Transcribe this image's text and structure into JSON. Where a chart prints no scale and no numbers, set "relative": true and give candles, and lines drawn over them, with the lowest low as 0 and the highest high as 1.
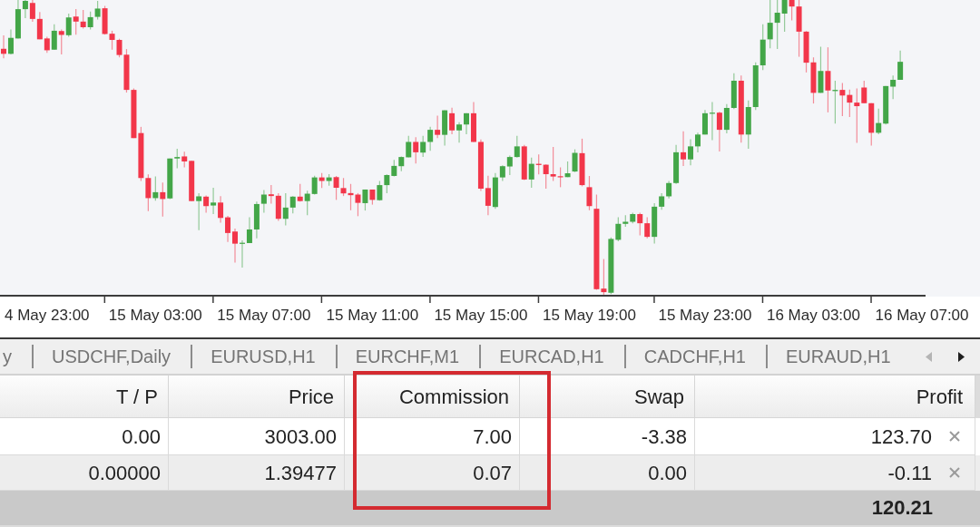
{
  "chart_data": [
    {
      "type": "candlestick",
      "relative": true,
      "categories": [
        null,
        null,
        null,
        null,
        null,
        null,
        "4 May 23:00",
        null,
        null,
        null,
        null,
        null,
        null,
        null,
        null,
        null,
        null,
        null,
        null,
        null,
        null,
        "15 May 03:00",
        null,
        null,
        null,
        null,
        null,
        null,
        null,
        null,
        null,
        null,
        null,
        null,
        null,
        null,
        "15 May 07:00",
        null,
        null,
        null,
        null,
        null,
        null,
        null,
        null,
        null,
        null,
        null,
        null,
        null,
        null,
        "15 May 11:00",
        null,
        null,
        null,
        null,
        null,
        null,
        null,
        null,
        null,
        null,
        null,
        null,
        null,
        null,
        "15 May 15:00",
        null,
        null,
        null,
        null,
        null,
        null,
        null,
        null,
        null,
        null,
        null,
        null,
        null,
        null,
        "15 May 19:00",
        null,
        null,
        null,
        null,
        null,
        null,
        null,
        null,
        null,
        null,
        null,
        null,
        null,
        null,
        null,
        "15 May 23:00",
        null,
        null,
        null,
        null,
        null,
        null,
        null,
        null,
        null,
        null,
        null,
        null,
        null,
        null,
        "16 May 03:00",
        null,
        null,
        null,
        null,
        null,
        null,
        null,
        null,
        null,
        null,
        null,
        null,
        null,
        null,
        "16 May 07:00"
      ],
      "ohlc": [
        [
          0.835,
          0.88,
          0.803,
          0.818
        ],
        [
          0.818,
          0.9,
          0.816,
          0.872
        ],
        [
          0.87,
          1,
          0.87,
          0.969
        ],
        [
          0.969,
          1,
          0.939,
          0.997
        ],
        [
          0.99,
          1,
          0.926,
          0.936
        ],
        [
          0.936,
          0.959,
          0.867,
          0.867
        ],
        [
          0.87,
          0.876,
          0.821,
          0.83
        ],
        [
          0.832,
          0.918,
          0.832,
          0.896
        ],
        [
          0.895,
          0.9,
          0.816,
          0.882
        ],
        [
          0.881,
          0.954,
          0.876,
          0.941
        ],
        [
          0.944,
          0.969,
          0.883,
          0.927
        ],
        [
          0.927,
          0.966,
          0.903,
          0.908
        ],
        [
          0.908,
          0.961,
          0.9,
          0.942
        ],
        [
          0.943,
          0.997,
          0.934,
          0.971
        ],
        [
          0.972,
          0.98,
          0.883,
          0.885
        ],
        [
          0.886,
          0.896,
          0.832,
          0.865
        ],
        [
          0.865,
          0.869,
          0.806,
          0.814
        ],
        [
          0.815,
          0.834,
          0.687,
          0.696
        ],
        [
          0.696,
          0.701,
          0.533,
          0.533
        ],
        [
          0.55,
          0.571,
          0.388,
          0.398
        ],
        [
          0.398,
          0.41,
          0.286,
          0.33
        ],
        [
          0.33,
          0.403,
          0.321,
          0.35
        ],
        [
          0.35,
          0.383,
          0.268,
          0.327
        ],
        [
          0.329,
          0.464,
          0.327,
          0.464
        ],
        [
          0.464,
          0.497,
          0.431,
          0.469
        ],
        [
          0.471,
          0.487,
          0.434,
          0.454
        ],
        [
          0.456,
          0.456,
          0.32,
          0.32
        ],
        [
          0.32,
          0.347,
          0.222,
          0.336
        ],
        [
          0.335,
          0.339,
          0.281,
          0.303
        ],
        [
          0.305,
          0.365,
          0.276,
          0.315
        ],
        [
          0.315,
          0.337,
          0.247,
          0.263
        ],
        [
          0.265,
          0.27,
          0.182,
          0.212
        ],
        [
          0.217,
          0.227,
          0.112,
          0.176
        ],
        [
          0.176,
          0.187,
          0.095,
          0.179
        ],
        [
          0.178,
          0.265,
          0.178,
          0.224
        ],
        [
          0.224,
          0.318,
          0.194,
          0.31
        ],
        [
          0.311,
          0.357,
          0.281,
          0.342
        ],
        [
          0.343,
          0.374,
          0.311,
          0.337
        ],
        [
          0.338,
          0.347,
          0.253,
          0.26
        ],
        [
          0.26,
          0.347,
          0.238,
          0.298
        ],
        [
          0.298,
          0.337,
          0.278,
          0.335
        ],
        [
          0.335,
          0.378,
          0.318,
          0.32
        ],
        [
          0.32,
          0.355,
          0.272,
          0.345
        ],
        [
          0.344,
          0.406,
          0.342,
          0.4
        ],
        [
          0.4,
          0.415,
          0.364,
          0.388
        ],
        [
          0.388,
          0.411,
          0.372,
          0.4
        ],
        [
          0.401,
          0.405,
          0.324,
          0.365
        ],
        [
          0.364,
          0.398,
          0.337,
          0.346
        ],
        [
          0.347,
          0.378,
          0.289,
          0.34
        ],
        [
          0.342,
          0.347,
          0.269,
          0.314
        ],
        [
          0.313,
          0.359,
          0.288,
          0.359
        ],
        [
          0.359,
          0.359,
          0.308,
          0.324
        ],
        [
          0.323,
          0.388,
          0.321,
          0.374
        ],
        [
          0.374,
          0.41,
          0.347,
          0.408
        ],
        [
          0.405,
          0.459,
          0.403,
          0.439
        ],
        [
          0.438,
          0.471,
          0.421,
          0.469
        ],
        [
          0.468,
          0.541,
          0.468,
          0.52
        ],
        [
          0.52,
          0.536,
          0.447,
          0.485
        ],
        [
          0.484,
          0.541,
          0.469,
          0.52
        ],
        [
          0.52,
          0.571,
          0.49,
          0.561
        ],
        [
          0.561,
          0.609,
          0.533,
          0.544
        ],
        [
          0.544,
          0.627,
          0.508,
          0.627
        ],
        [
          0.617,
          0.636,
          0.546,
          0.559
        ],
        [
          0.559,
          0.587,
          0.518,
          0.579
        ],
        [
          0.579,
          0.617,
          0.546,
          0.617
        ],
        [
          0.617,
          0.655,
          0.52,
          0.52
        ],
        [
          0.52,
          0.528,
          0.354,
          0.362
        ],
        [
          0.364,
          0.406,
          0.272,
          0.304
        ],
        [
          0.3,
          0.415,
          0.294,
          0.4
        ],
        [
          0.4,
          0.441,
          0.388,
          0.438
        ],
        [
          0.437,
          0.474,
          0.408,
          0.469
        ],
        [
          0.469,
          0.541,
          0.467,
          0.505
        ],
        [
          0.505,
          0.51,
          0.391,
          0.393
        ],
        [
          0.393,
          0.467,
          0.365,
          0.446
        ],
        [
          0.446,
          0.478,
          0.41,
          0.442
        ],
        [
          0.443,
          0.444,
          0.362,
          0.411
        ],
        [
          0.411,
          0.503,
          0.388,
          0.403
        ],
        [
          0.404,
          0.434,
          0.367,
          0.401
        ],
        [
          0.401,
          0.454,
          0.401,
          0.414
        ],
        [
          0.42,
          0.495,
          0.418,
          0.483
        ],
        [
          0.482,
          0.531,
          0.37,
          0.374
        ],
        [
          0.367,
          0.405,
          0.289,
          0.303
        ],
        [
          0.294,
          0.342,
          0.02,
          0.022
        ],
        [
          0.024,
          0.124,
          0,
          0.012
        ],
        [
          0.01,
          0.197,
          0.005,
          0.192
        ],
        [
          0.189,
          0.265,
          0.184,
          0.243
        ],
        [
          0.243,
          0.272,
          0.233,
          0.25
        ],
        [
          0.25,
          0.281,
          0.245,
          0.276
        ],
        [
          0.276,
          0.281,
          0.204,
          0.245
        ],
        [
          0.245,
          0.265,
          0.194,
          0.199
        ],
        [
          0.199,
          0.313,
          0.176,
          0.301
        ],
        [
          0.301,
          0.347,
          0.291,
          0.336
        ],
        [
          0.336,
          0.388,
          0.329,
          0.381
        ],
        [
          0.381,
          0.51,
          0.378,
          0.485
        ],
        [
          0.485,
          0.556,
          0.439,
          0.461
        ],
        [
          0.461,
          0.529,
          0.441,
          0.505
        ],
        [
          0.505,
          0.551,
          0.485,
          0.545
        ],
        [
          0.545,
          0.628,
          0.545,
          0.617
        ],
        [
          0.616,
          0.655,
          0.526,
          0.619
        ],
        [
          0.619,
          0.622,
          0.488,
          0.561
        ],
        [
          0.561,
          0.648,
          0.549,
          0.635
        ],
        [
          0.635,
          0.752,
          0.631,
          0.727
        ],
        [
          0.727,
          0.745,
          0.518,
          0.545
        ],
        [
          0.545,
          0.66,
          0.497,
          0.638
        ],
        [
          0.638,
          0.789,
          0.628,
          0.779
        ],
        [
          0.779,
          0.918,
          0.763,
          0.866
        ],
        [
          0.867,
          1,
          0.837,
          0.923
        ],
        [
          0.923,
          1,
          0.834,
          0.957
        ],
        [
          0.954,
          1,
          0.893,
          1
        ],
        [
          1,
          1,
          0.931,
          0.978
        ],
        [
          0.978,
          1,
          0.808,
          0.893
        ],
        [
          0.893,
          0.895,
          0.755,
          0.788
        ],
        [
          0.789,
          0.806,
          0.65,
          0.686
        ],
        [
          0.686,
          0.842,
          0.686,
          0.76
        ],
        [
          0.76,
          0.84,
          0.62,
          0.694
        ],
        [
          0.692,
          0.727,
          0.582,
          0.696
        ],
        [
          0.696,
          0.719,
          0.607,
          0.677
        ],
        [
          0.679,
          0.697,
          0.604,
          0.653
        ],
        [
          0.653,
          0.701,
          0.517,
          0.641
        ],
        [
          0.704,
          0.727,
          0.651,
          0.651
        ],
        [
          0.651,
          0.651,
          0.508,
          0.551
        ],
        [
          0.551,
          0.633,
          0.546,
          0.584
        ],
        [
          0.582,
          0.709,
          0.579,
          0.709
        ],
        [
          0.707,
          0.745,
          0.665,
          0.73
        ],
        [
          0.73,
          0.829,
          0.73,
          0.791
        ],
        null,
        null,
        null
      ],
      "colors": [
        "#f2364a",
        "#43a648",
        "#43a648",
        "#43a648",
        "#f2364a",
        "#f2364a",
        "#f2364a",
        "#43a648",
        "#f2364a",
        "#43a648",
        "#f2364a",
        "#f2364a",
        "#43a648",
        "#43a648",
        "#f2364a",
        "#f2364a",
        "#f2364a",
        "#f2364a",
        "#f2364a",
        "#f2364a",
        "#f2364a",
        "#43a648",
        "#f2364a",
        "#43a648",
        "#43a648",
        "#f2364a",
        "#f2364a",
        "#43a648",
        "#f2364a",
        "#43a648",
        "#f2364a",
        "#f2364a",
        "#f2364a",
        "#43a648",
        "#43a648",
        "#43a648",
        "#43a648",
        "#f2364a",
        "#f2364a",
        "#43a648",
        "#43a648",
        "#f2364a",
        "#43a648",
        "#43a648",
        "#f2364a",
        "#43a648",
        "#f2364a",
        "#f2364a",
        "#f2364a",
        "#f2364a",
        "#43a648",
        "#f2364a",
        "#43a648",
        "#43a648",
        "#43a648",
        "#43a648",
        "#43a648",
        "#f2364a",
        "#43a648",
        "#43a648",
        "#f2364a",
        "#43a648",
        "#f2364a",
        "#43a648",
        "#43a648",
        "#f2364a",
        "#f2364a",
        "#f2364a",
        "#43a648",
        "#43a648",
        "#43a648",
        "#43a648",
        "#f2364a",
        "#43a648",
        "#f2364a",
        "#f2364a",
        "#f2364a",
        "#f2364a",
        "#43a648",
        "#43a648",
        "#f2364a",
        "#f2364a",
        "#f2364a",
        "#f2364a",
        "#43a648",
        "#43a648",
        "#43a648",
        "#43a648",
        "#f2364a",
        "#f2364a",
        "#43a648",
        "#43a648",
        "#43a648",
        "#43a648",
        "#f2364a",
        "#43a648",
        "#43a648",
        "#43a648",
        "#43a648",
        "#f2364a",
        "#43a648",
        "#43a648",
        "#f2364a",
        "#43a648",
        "#43a648",
        "#43a648",
        "#43a648",
        "#43a648",
        "#43a648",
        "#f2364a",
        "#f2364a",
        "#f2364a",
        "#f2364a",
        "#43a648",
        "#f2364a",
        "#43a648",
        "#f2364a",
        "#f2364a",
        "#f2364a",
        "#f2364a",
        "#f2364a",
        "#43a648",
        "#43a648",
        "#43a648",
        "#43a648",
        null,
        null,
        null
      ]
    },
    {
      "type": "other",
      "annotations": [
        "y",
        "USDCHF,Daily",
        "EURUSD,H1",
        "EURCHF,M1",
        "EURCAD,H1",
        "CADCHF,H1",
        "EURAUD,H1"
      ],
      "categories": [
        "T / P",
        "Price",
        "Commission",
        "Swap",
        "Profit"
      ],
      "cell_labels": [
        [
          "0.00",
          "3003.00",
          "7.00",
          "-3.38",
          "123.70"
        ],
        [
          "0.00000",
          "1.39477",
          "0.07",
          "0.00",
          "-0.11"
        ],
        [
          null,
          null,
          null,
          null,
          "120.21"
        ]
      ]
    }
  ]
}
